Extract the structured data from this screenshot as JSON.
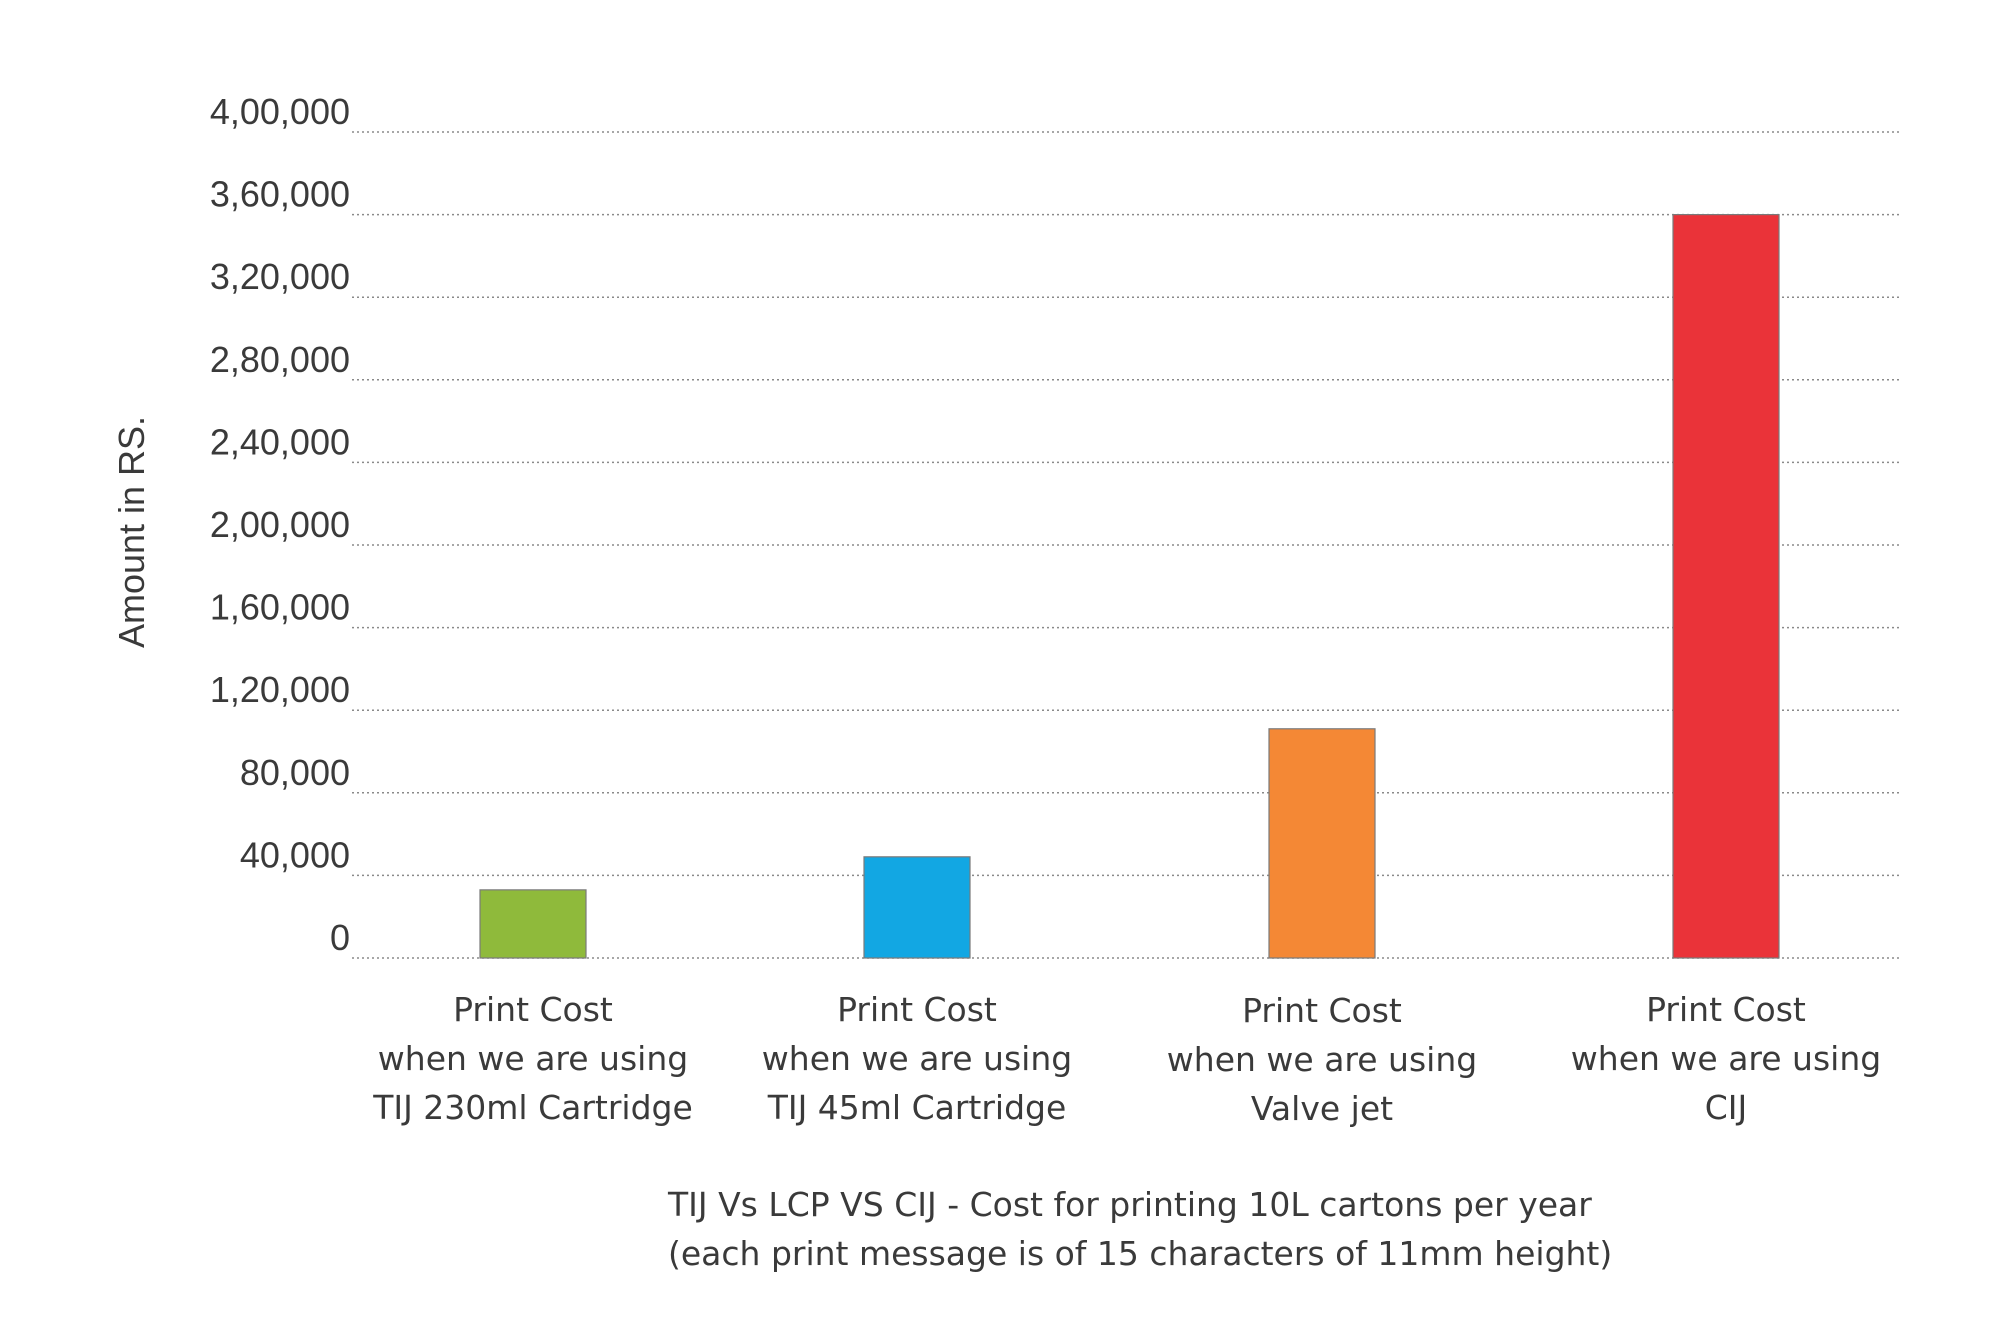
{
  "chart_data": {
    "type": "bar",
    "ylabel": "Amount in RS.",
    "ylim": [
      0,
      400000
    ],
    "yticks": [
      {
        "value": 0,
        "label": "0"
      },
      {
        "value": 40000,
        "label": "40,000"
      },
      {
        "value": 80000,
        "label": "80,000"
      },
      {
        "value": 120000,
        "label": "1,20,000"
      },
      {
        "value": 160000,
        "label": "1,60,000"
      },
      {
        "value": 200000,
        "label": "2,00,000"
      },
      {
        "value": 240000,
        "label": "2,40,000"
      },
      {
        "value": 280000,
        "label": "2,80,000"
      },
      {
        "value": 320000,
        "label": "3,20,000"
      },
      {
        "value": 360000,
        "label": "3,60,000"
      },
      {
        "value": 400000,
        "label": "4,00,000"
      }
    ],
    "categories": [
      {
        "lines": [
          "Print Cost",
          "when we are using",
          "TIJ 230ml Cartridge"
        ]
      },
      {
        "lines": [
          "Print Cost",
          "when we are using",
          "TIJ 45ml Cartridge"
        ]
      },
      {
        "lines": [
          "Print Cost",
          "when we are using",
          "Valve jet"
        ]
      },
      {
        "lines": [
          "Print Cost",
          "when we are using",
          "CIJ"
        ]
      }
    ],
    "values": [
      33000,
      49000,
      111000,
      360000
    ],
    "colors": [
      "#8fba3b",
      "#12a7e3",
      "#f48835",
      "#ea3339"
    ],
    "grid": true,
    "title_lines": [
      "TIJ Vs LCP VS CIJ - Cost for printing 10L cartons per year",
      "(each print message is of 15 characters of 11mm height)"
    ]
  }
}
